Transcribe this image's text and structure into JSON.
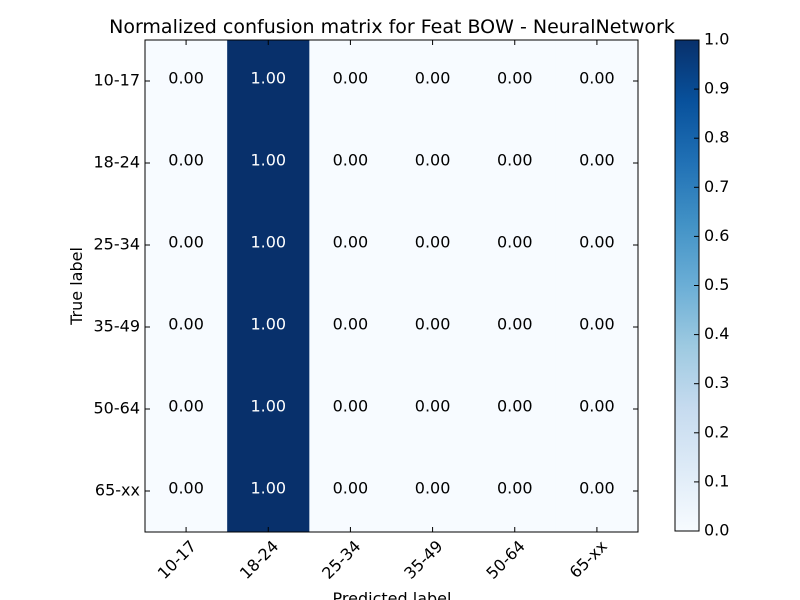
{
  "chart_data": {
    "type": "heatmap",
    "title": "Normalized confusion matrix for Feat BOW - NeuralNetwork",
    "xlabel": "Predicted label",
    "ylabel": "True label",
    "x_categories": [
      "10-17",
      "18-24",
      "25-34",
      "35-49",
      "50-64",
      "65-xx"
    ],
    "y_categories": [
      "10-17",
      "18-24",
      "25-34",
      "35-49",
      "50-64",
      "65-xx"
    ],
    "values": [
      [
        0.0,
        1.0,
        0.0,
        0.0,
        0.0,
        0.0
      ],
      [
        0.0,
        1.0,
        0.0,
        0.0,
        0.0,
        0.0
      ],
      [
        0.0,
        1.0,
        0.0,
        0.0,
        0.0,
        0.0
      ],
      [
        0.0,
        1.0,
        0.0,
        0.0,
        0.0,
        0.0
      ],
      [
        0.0,
        1.0,
        0.0,
        0.0,
        0.0,
        0.0
      ],
      [
        0.0,
        1.0,
        0.0,
        0.0,
        0.0,
        0.0
      ]
    ],
    "cell_labels": [
      [
        "0.00",
        "1.00",
        "0.00",
        "0.00",
        "0.00",
        "0.00"
      ],
      [
        "0.00",
        "1.00",
        "0.00",
        "0.00",
        "0.00",
        "0.00"
      ],
      [
        "0.00",
        "1.00",
        "0.00",
        "0.00",
        "0.00",
        "0.00"
      ],
      [
        "0.00",
        "1.00",
        "0.00",
        "0.00",
        "0.00",
        "0.00"
      ],
      [
        "0.00",
        "1.00",
        "0.00",
        "0.00",
        "0.00",
        "0.00"
      ],
      [
        "0.00",
        "1.00",
        "0.00",
        "0.00",
        "0.00",
        "0.00"
      ]
    ],
    "colorbar": {
      "range": [
        0.0,
        1.0
      ],
      "tick_labels": [
        "0.0",
        "0.1",
        "0.2",
        "0.3",
        "0.4",
        "0.5",
        "0.6",
        "0.7",
        "0.8",
        "0.9",
        "1.0"
      ],
      "colormap": "Blues",
      "low_color": "#f7fbff",
      "high_color": "#08306b"
    },
    "colors": {
      "text_on_light": "#000000",
      "text_on_dark": "#ffffff",
      "frame": "#000000"
    }
  }
}
